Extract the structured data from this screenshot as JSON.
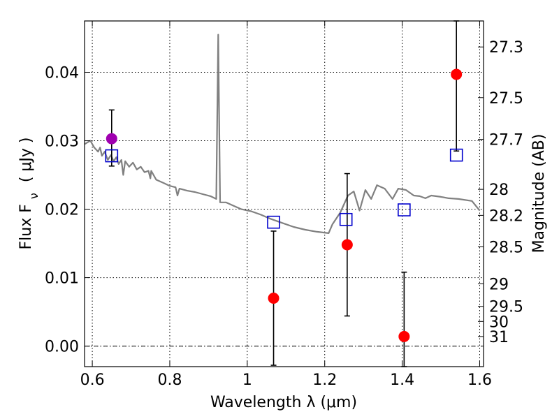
{
  "chart_data": {
    "type": "scatter",
    "title": "",
    "xlabel": "Wavelength  λ (μm)",
    "ylabel_left": "Flux  F",
    "ylabel_left_sub": "ν",
    "ylabel_left_unit": "( μJy )",
    "ylabel_right": "Magnitude (AB)",
    "xlim": [
      0.58,
      1.61
    ],
    "ylim": [
      -0.003,
      0.0475
    ],
    "grid": true,
    "x_ticks": [
      0.6,
      0.8,
      1.0,
      1.2,
      1.4,
      1.6
    ],
    "x_tick_labels": [
      "0.6",
      "0.8",
      "1",
      "1.2",
      "1.4",
      "1.6"
    ],
    "y_ticks": [
      0.0,
      0.01,
      0.02,
      0.03,
      0.04
    ],
    "y_tick_labels": [
      "0.00",
      "0.01",
      "0.02",
      "0.03",
      "0.04"
    ],
    "right_ticks": [
      {
        "label": "27.3",
        "flux": 0.0437
      },
      {
        "label": "27.5",
        "flux": 0.0363
      },
      {
        "label": "27.7",
        "flux": 0.0302
      },
      {
        "label": "28",
        "flux": 0.0229
      },
      {
        "label": "28.2",
        "flux": 0.0191
      },
      {
        "label": "28.5",
        "flux": 0.0145
      },
      {
        "label": "29",
        "flux": 0.0091
      },
      {
        "label": "29.5",
        "flux": 0.0058
      },
      {
        "label": "30",
        "flux": 0.0036
      },
      {
        "label": "31",
        "flux": 0.0014
      }
    ],
    "series": [
      {
        "name": "template-spectrum",
        "kind": "line",
        "color": "#808080",
        "points": [
          [
            0.58,
            0.0295
          ],
          [
            0.595,
            0.03
          ],
          [
            0.605,
            0.029
          ],
          [
            0.615,
            0.0284
          ],
          [
            0.62,
            0.029
          ],
          [
            0.625,
            0.0278
          ],
          [
            0.632,
            0.0284
          ],
          [
            0.64,
            0.0272
          ],
          [
            0.648,
            0.0279
          ],
          [
            0.655,
            0.027
          ],
          [
            0.662,
            0.0276
          ],
          [
            0.668,
            0.0266
          ],
          [
            0.675,
            0.0272
          ],
          [
            0.68,
            0.025
          ],
          [
            0.685,
            0.027
          ],
          [
            0.695,
            0.0262
          ],
          [
            0.705,
            0.0268
          ],
          [
            0.715,
            0.0258
          ],
          [
            0.725,
            0.0262
          ],
          [
            0.735,
            0.0254
          ],
          [
            0.745,
            0.0256
          ],
          [
            0.75,
            0.0245
          ],
          [
            0.752,
            0.0256
          ],
          [
            0.765,
            0.0243
          ],
          [
            0.785,
            0.0238
          ],
          [
            0.8,
            0.0234
          ],
          [
            0.815,
            0.0232
          ],
          [
            0.82,
            0.022
          ],
          [
            0.825,
            0.023
          ],
          [
            0.845,
            0.0227
          ],
          [
            0.865,
            0.0225
          ],
          [
            0.885,
            0.0222
          ],
          [
            0.905,
            0.0219
          ],
          [
            0.92,
            0.0215
          ],
          [
            0.925,
            0.0455
          ],
          [
            0.93,
            0.021
          ],
          [
            0.945,
            0.021
          ],
          [
            0.965,
            0.0205
          ],
          [
            0.985,
            0.02
          ],
          [
            1.01,
            0.0197
          ],
          [
            1.035,
            0.0192
          ],
          [
            1.06,
            0.0186
          ],
          [
            1.09,
            0.018
          ],
          [
            1.12,
            0.0174
          ],
          [
            1.15,
            0.017
          ],
          [
            1.18,
            0.0167
          ],
          [
            1.21,
            0.0165
          ],
          [
            1.22,
            0.0178
          ],
          [
            1.24,
            0.0195
          ],
          [
            1.26,
            0.022
          ],
          [
            1.275,
            0.0226
          ],
          [
            1.29,
            0.0198
          ],
          [
            1.305,
            0.0228
          ],
          [
            1.32,
            0.0215
          ],
          [
            1.335,
            0.0235
          ],
          [
            1.355,
            0.023
          ],
          [
            1.375,
            0.0215
          ],
          [
            1.39,
            0.023
          ],
          [
            1.41,
            0.0228
          ],
          [
            1.43,
            0.022
          ],
          [
            1.445,
            0.0219
          ],
          [
            1.46,
            0.0216
          ],
          [
            1.475,
            0.022
          ],
          [
            1.5,
            0.0218
          ],
          [
            1.52,
            0.0216
          ],
          [
            1.545,
            0.0215
          ],
          [
            1.58,
            0.0212
          ],
          [
            1.6,
            0.0198
          ]
        ]
      },
      {
        "name": "observed-purple",
        "kind": "points",
        "color": "#a000b0",
        "points": [
          {
            "x": 0.65,
            "y": 0.0303
          }
        ]
      },
      {
        "name": "observed-red",
        "kind": "points",
        "color": "#ff0000",
        "points": [
          {
            "x": 1.068,
            "y": 0.007
          },
          {
            "x": 1.258,
            "y": 0.0148
          },
          {
            "x": 1.405,
            "y": 0.0014
          },
          {
            "x": 1.54,
            "y": 0.0397
          }
        ]
      },
      {
        "name": "model-photometry",
        "kind": "squares",
        "color": "#0000cc",
        "points": [
          {
            "x": 0.65,
            "y": 0.0278
          },
          {
            "x": 1.068,
            "y": 0.0181
          },
          {
            "x": 1.255,
            "y": 0.0185
          },
          {
            "x": 1.405,
            "y": 0.0199
          },
          {
            "x": 1.54,
            "y": 0.0279
          }
        ]
      }
    ],
    "error_bars": [
      {
        "x": 0.65,
        "low": 0.0263,
        "high": 0.0345
      },
      {
        "x": 1.068,
        "low": -0.0028,
        "high": 0.0168
      },
      {
        "x": 1.258,
        "low": 0.0044,
        "high": 0.0252
      },
      {
        "x": 1.405,
        "low": -0.003,
        "high": 0.0108
      },
      {
        "x": 1.54,
        "low": 0.0285,
        "high": 0.0475
      }
    ],
    "zero_line": 0.0
  }
}
